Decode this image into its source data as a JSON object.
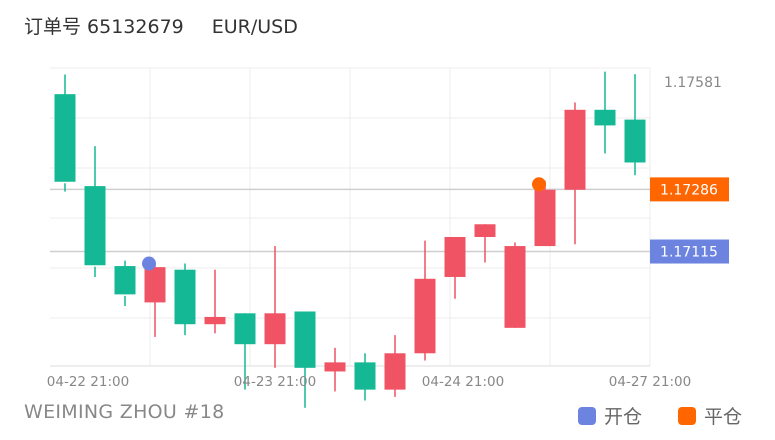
{
  "header": {
    "order_label": "订单号 65132679",
    "pair": "EUR/USD"
  },
  "footer": {
    "author": "WEIMING ZHOU #18"
  },
  "legend": {
    "open_label": "开仓",
    "close_label": "平仓",
    "open_color": "#6c84e0",
    "close_color": "#ff6600"
  },
  "colors": {
    "up": "#14b894",
    "down": "#ef5364",
    "grid": "#eeeeee"
  },
  "chart_data": {
    "type": "candlestick",
    "y_axis": {
      "min": 1.168,
      "max": 1.1762,
      "tick_labels": [
        "1.17581"
      ]
    },
    "x_tick_labels": [
      "04-22 21:00",
      "04-23 21:00",
      "04-24 21:00",
      "04-27 21:00"
    ],
    "candles": [
      {
        "o": 1.17305,
        "h": 1.17602,
        "l": 1.1728,
        "c": 1.17548,
        "dir": "up"
      },
      {
        "o": 1.17075,
        "h": 1.17405,
        "l": 1.17045,
        "c": 1.17295,
        "dir": "up"
      },
      {
        "o": 1.16995,
        "h": 1.1709,
        "l": 1.16965,
        "c": 1.17075,
        "dir": "up"
      },
      {
        "o": 1.17072,
        "h": 1.17082,
        "l": 1.1688,
        "c": 1.16975,
        "dir": "down"
      },
      {
        "o": 1.16915,
        "h": 1.17082,
        "l": 1.16885,
        "c": 1.17065,
        "dir": "up"
      },
      {
        "o": 1.16935,
        "h": 1.17065,
        "l": 1.1689,
        "c": 1.16915,
        "dir": "down"
      },
      {
        "o": 1.1686,
        "h": 1.16945,
        "l": 1.16735,
        "c": 1.16945,
        "dir": "up"
      },
      {
        "o": 1.16945,
        "h": 1.1713,
        "l": 1.16795,
        "c": 1.1686,
        "dir": "down"
      },
      {
        "o": 1.16795,
        "h": 1.1695,
        "l": 1.16685,
        "c": 1.1695,
        "dir": "up"
      },
      {
        "o": 1.1681,
        "h": 1.1685,
        "l": 1.1673,
        "c": 1.16785,
        "dir": "down"
      },
      {
        "o": 1.16735,
        "h": 1.16835,
        "l": 1.16705,
        "c": 1.1681,
        "dir": "up"
      },
      {
        "o": 1.16835,
        "h": 1.16885,
        "l": 1.16715,
        "c": 1.16735,
        "dir": "down"
      },
      {
        "o": 1.1704,
        "h": 1.17145,
        "l": 1.16815,
        "c": 1.16835,
        "dir": "down"
      },
      {
        "o": 1.17155,
        "h": 1.17155,
        "l": 1.16985,
        "c": 1.17045,
        "dir": "down"
      },
      {
        "o": 1.1719,
        "h": 1.1719,
        "l": 1.17085,
        "c": 1.17155,
        "dir": "down"
      },
      {
        "o": 1.1713,
        "h": 1.1714,
        "l": 1.16905,
        "c": 1.16905,
        "dir": "down"
      },
      {
        "o": 1.17285,
        "h": 1.1731,
        "l": 1.1713,
        "c": 1.1713,
        "dir": "down"
      },
      {
        "o": 1.17505,
        "h": 1.17525,
        "l": 1.17135,
        "c": 1.17285,
        "dir": "down"
      },
      {
        "o": 1.17462,
        "h": 1.1761,
        "l": 1.17385,
        "c": 1.17505,
        "dir": "up"
      },
      {
        "o": 1.1736,
        "h": 1.17603,
        "l": 1.17325,
        "c": 1.17478,
        "dir": "up"
      }
    ],
    "price_lines": [
      {
        "label": "1.17286",
        "value": 1.17286,
        "color": "#ff6600"
      },
      {
        "label": "1.17115",
        "value": 1.17115,
        "color": "#6c84e0"
      }
    ],
    "markers": [
      {
        "type": "open",
        "candle": 3,
        "value": 1.17082
      },
      {
        "type": "close",
        "candle": 16,
        "value": 1.173
      }
    ]
  }
}
